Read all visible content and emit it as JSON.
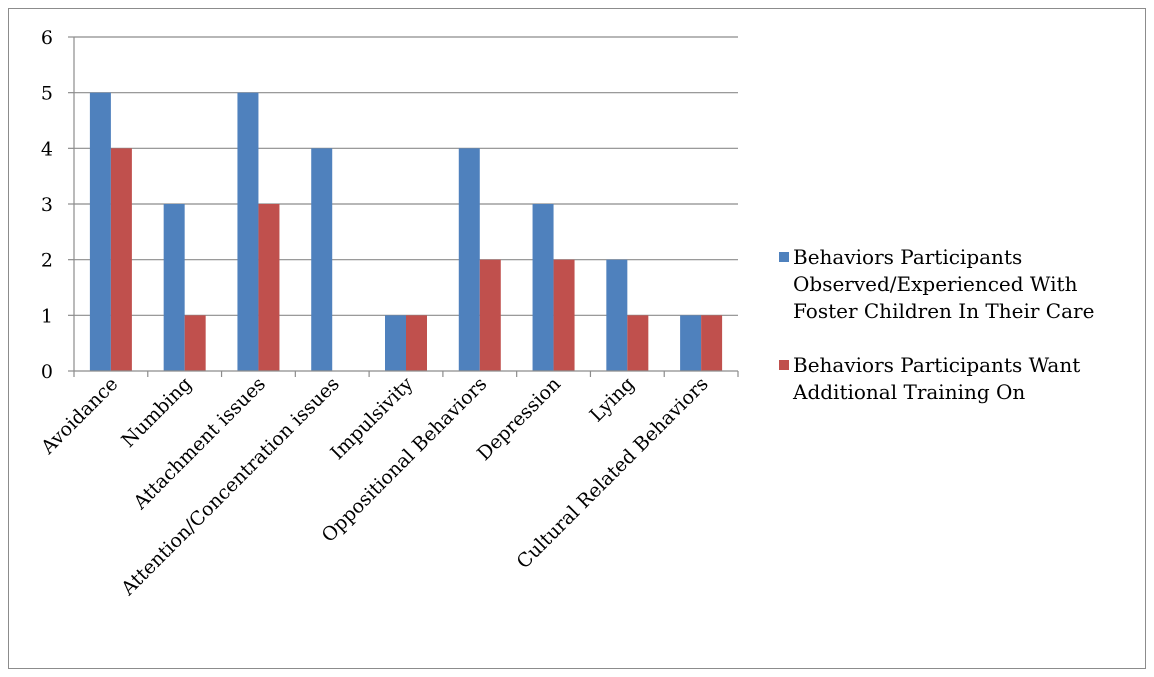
{
  "chart_data": {
    "type": "bar",
    "categories": [
      "Avoidance",
      "Numbing",
      "Attachment issues",
      "Attention/Concentration issues",
      "Impulsivity",
      "Oppositional Behaviors",
      "Depression",
      "Lying",
      "Cultural Related Behaviors"
    ],
    "series": [
      {
        "name": "Behaviors Participants Observed/Experienced With Foster Children In Their Care",
        "name_lines": [
          "Behaviors Participants",
          "Observed/Experienced With",
          "Foster Children In Their Care"
        ],
        "color": "#4f81bd",
        "values": [
          5,
          3,
          5,
          4,
          1,
          4,
          3,
          2,
          1
        ]
      },
      {
        "name": "Behaviors Participants Want Additional Training On",
        "name_lines": [
          "Behaviors Participants Want",
          "Additional Training On"
        ],
        "color": "#c0504d",
        "values": [
          4,
          1,
          3,
          0,
          1,
          2,
          2,
          1,
          1
        ]
      }
    ],
    "title": "",
    "xlabel": "",
    "ylabel": "",
    "ylim": [
      0,
      6
    ],
    "yticks": [
      0,
      1,
      2,
      3,
      4,
      5,
      6
    ],
    "grid": true,
    "legend_position": "right"
  }
}
